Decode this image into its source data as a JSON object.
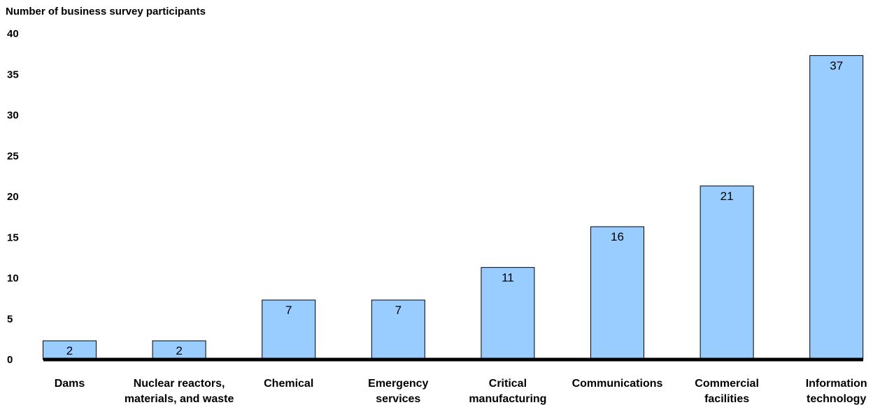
{
  "chart_data": {
    "type": "bar",
    "ylabel": "Number of business survey participants",
    "xlabel": "",
    "ylim": [
      0,
      40
    ],
    "yticks": [
      0,
      5,
      10,
      15,
      20,
      25,
      30,
      35,
      40
    ],
    "categories": [
      [
        "Dams"
      ],
      [
        "Nuclear reactors,",
        "materials, and waste"
      ],
      [
        "Chemical"
      ],
      [
        "Emergency",
        "services"
      ],
      [
        "Critical",
        "manufacturing"
      ],
      [
        "Communications"
      ],
      [
        "Commercial",
        "facilities"
      ],
      [
        "Information",
        "technology"
      ]
    ],
    "values": [
      2,
      2,
      7,
      7,
      11,
      16,
      21,
      37
    ],
    "bar_values_drawn": [
      2.3,
      2.3,
      7.3,
      7.3,
      11.3,
      16.3,
      21.3,
      37.3
    ],
    "data_labels": [
      "2",
      "2",
      "7",
      "7",
      "11",
      "16",
      "21",
      "37"
    ],
    "grid": false,
    "legend": "none",
    "colors": {
      "bar_fill": "#99ccff",
      "bar_stroke": "#000000",
      "axis": "#000000"
    }
  }
}
